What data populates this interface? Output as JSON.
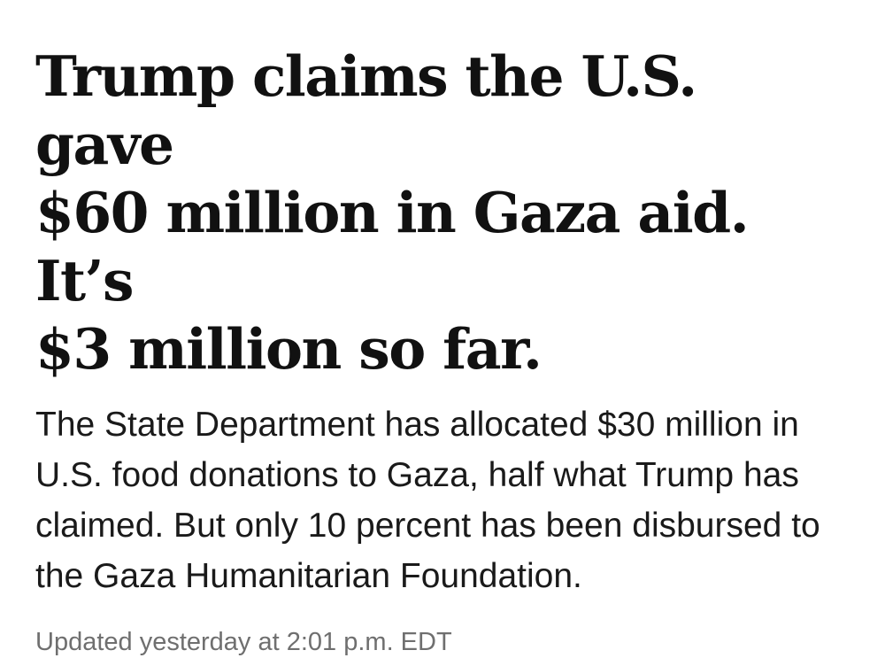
{
  "article": {
    "headline_lines": [
      "Trump claims the U.S. gave",
      "$60 million in Gaza aid. It’s",
      "$3 million so far."
    ],
    "summary": "The State Department has allocated $30 million in U.S. food donations to Gaza, half what Trump has claimed. But only 10 percent has been disbursed to the Gaza Humanitarian Foundation.",
    "timestamp": "Updated yesterday at 2:01 p.m. EDT"
  },
  "colors": {
    "headline": "#111111",
    "body": "#1a1a1a",
    "timestamp": "#6f6f6f",
    "background": "#ffffff"
  }
}
